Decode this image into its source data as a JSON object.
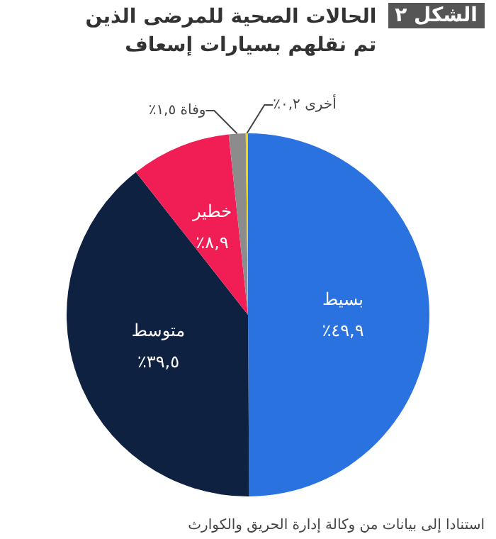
{
  "chart_data": {
    "type": "pie",
    "title": "الحالات الصحية للمرضى الذين تم نقلهم بسيارات إسعاف",
    "annotations": [
      "الشكل ٢",
      "استنادا إلى بيانات من وكالة إدارة الحريق والكوارث"
    ],
    "categories": [
      "بسيط",
      "متوسط",
      "خطير",
      "وفاة",
      "أخرى"
    ],
    "values": [
      49.9,
      39.5,
      8.9,
      1.5,
      0.2
    ],
    "colors": [
      "#2a72e0",
      "#0f2140",
      "#f01e55",
      "#8c8c8c",
      "#f5d800"
    ],
    "value_labels": [
      "٤٩,٩٪",
      "٣٩,٥٪",
      "٨,٩٪",
      "١,٥٪",
      "٠,٢٪"
    ],
    "legend": false
  }
}
